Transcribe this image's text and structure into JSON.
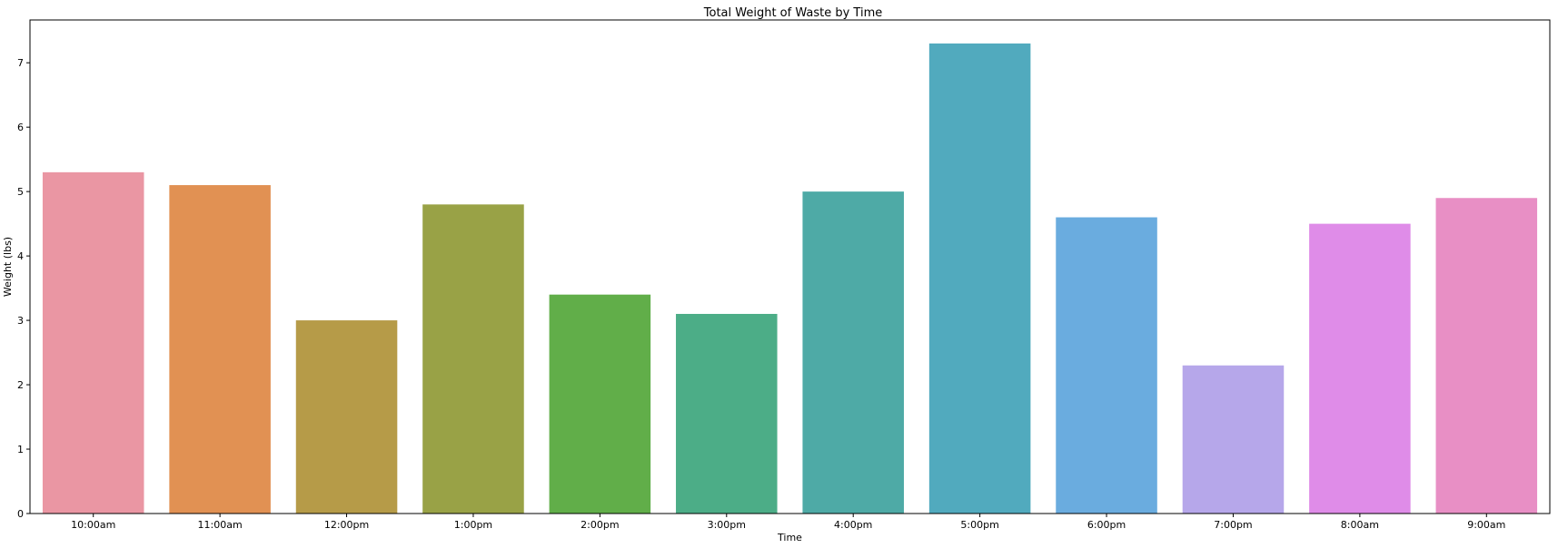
{
  "chart_data": {
    "type": "bar",
    "title": "Total Weight of Waste by Time",
    "xlabel": "Time",
    "ylabel": "Weight (lbs)",
    "categories": [
      "10:00am",
      "11:00am",
      "12:00pm",
      "1:00pm",
      "2:00pm",
      "3:00pm",
      "4:00pm",
      "5:00pm",
      "6:00pm",
      "7:00pm",
      "8:00am",
      "9:00am"
    ],
    "values": [
      5.3,
      5.1,
      3.0,
      4.8,
      3.4,
      3.1,
      5.0,
      7.3,
      4.6,
      2.3,
      4.5,
      4.9
    ],
    "colors": [
      "#ea96a3",
      "#e19153",
      "#b69b48",
      "#99a246",
      "#61ae49",
      "#4cad87",
      "#4eaaa6",
      "#51aabe",
      "#6aacdf",
      "#b6a7ea",
      "#df8ce8",
      "#e88fc5"
    ],
    "yticks": [
      "0",
      "1",
      "2",
      "3",
      "4",
      "5",
      "6",
      "7"
    ],
    "ylim": [
      0,
      7.665
    ],
    "grid": false,
    "legend": "none"
  }
}
